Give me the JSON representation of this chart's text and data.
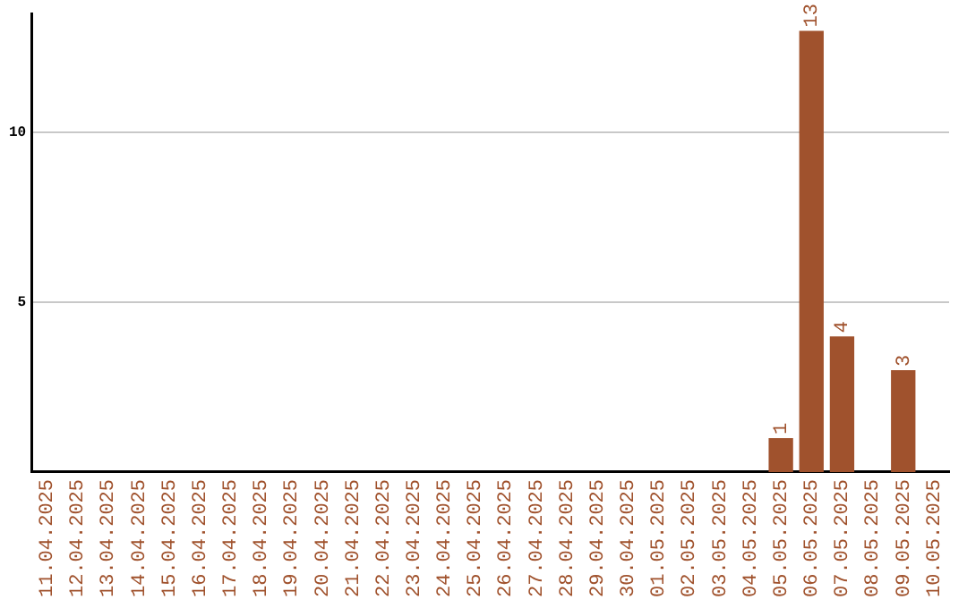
{
  "chart_data": {
    "type": "bar",
    "categories": [
      "11.04.2025",
      "12.04.2025",
      "13.04.2025",
      "14.04.2025",
      "15.04.2025",
      "16.04.2025",
      "17.04.2025",
      "18.04.2025",
      "19.04.2025",
      "20.04.2025",
      "21.04.2025",
      "22.04.2025",
      "23.04.2025",
      "24.04.2025",
      "25.04.2025",
      "26.04.2025",
      "27.04.2025",
      "28.04.2025",
      "29.04.2025",
      "30.04.2025",
      "01.05.2025",
      "02.05.2025",
      "03.05.2025",
      "04.05.2025",
      "05.05.2025",
      "06.05.2025",
      "07.05.2025",
      "08.05.2025",
      "09.05.2025",
      "10.05.2025"
    ],
    "values": [
      0,
      0,
      0,
      0,
      0,
      0,
      0,
      0,
      0,
      0,
      0,
      0,
      0,
      0,
      0,
      0,
      0,
      0,
      0,
      0,
      0,
      0,
      0,
      0,
      1,
      13,
      4,
      0,
      3,
      0
    ],
    "value_labels": [
      null,
      null,
      null,
      null,
      null,
      null,
      null,
      null,
      null,
      null,
      null,
      null,
      null,
      null,
      null,
      null,
      null,
      null,
      null,
      null,
      null,
      null,
      null,
      null,
      "1",
      "13",
      "4",
      null,
      "3",
      null
    ],
    "color": "#a0522d",
    "ylim": [
      0,
      13.5
    ],
    "yticks": [
      5,
      10
    ],
    "grid": "y",
    "legend": false
  }
}
